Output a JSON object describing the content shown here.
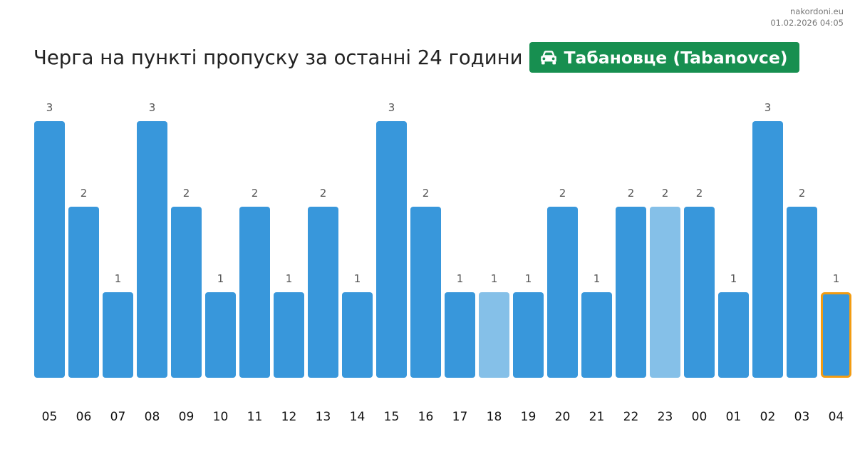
{
  "site": {
    "domain": "nakordoni.eu",
    "timestamp": "01.02.2026 04:05"
  },
  "header": {
    "title": "Черга на пункті пропуску за останні 24 години",
    "checkpoint_icon": "car-icon",
    "checkpoint_name": "Табановце (Tabanovce)",
    "badge_color": "#178f50"
  },
  "chart_data": {
    "type": "bar",
    "categories": [
      "05",
      "06",
      "07",
      "08",
      "09",
      "10",
      "11",
      "12",
      "13",
      "14",
      "15",
      "16",
      "17",
      "18",
      "19",
      "20",
      "21",
      "22",
      "23",
      "00",
      "01",
      "02",
      "03",
      "04"
    ],
    "values": [
      3,
      2,
      1,
      3,
      2,
      1,
      2,
      1,
      2,
      1,
      3,
      2,
      1,
      1,
      1,
      2,
      1,
      2,
      2,
      2,
      1,
      3,
      2,
      1
    ],
    "data_labels": [
      "3",
      "2",
      "1",
      "3",
      "2",
      "1",
      "2",
      "1",
      "2",
      "1",
      "3",
      "2",
      "1",
      "1",
      "1",
      "2",
      "1",
      "2",
      "2",
      "2",
      "1",
      "3",
      "2",
      "1"
    ],
    "ylim": [
      0,
      3
    ],
    "grid": false,
    "colors": {
      "bar": "#3897db",
      "bar_light": "#85c0e8",
      "current_outline": "#f39c12"
    },
    "light_categories": [
      "18",
      "23"
    ],
    "current_category": "04"
  }
}
